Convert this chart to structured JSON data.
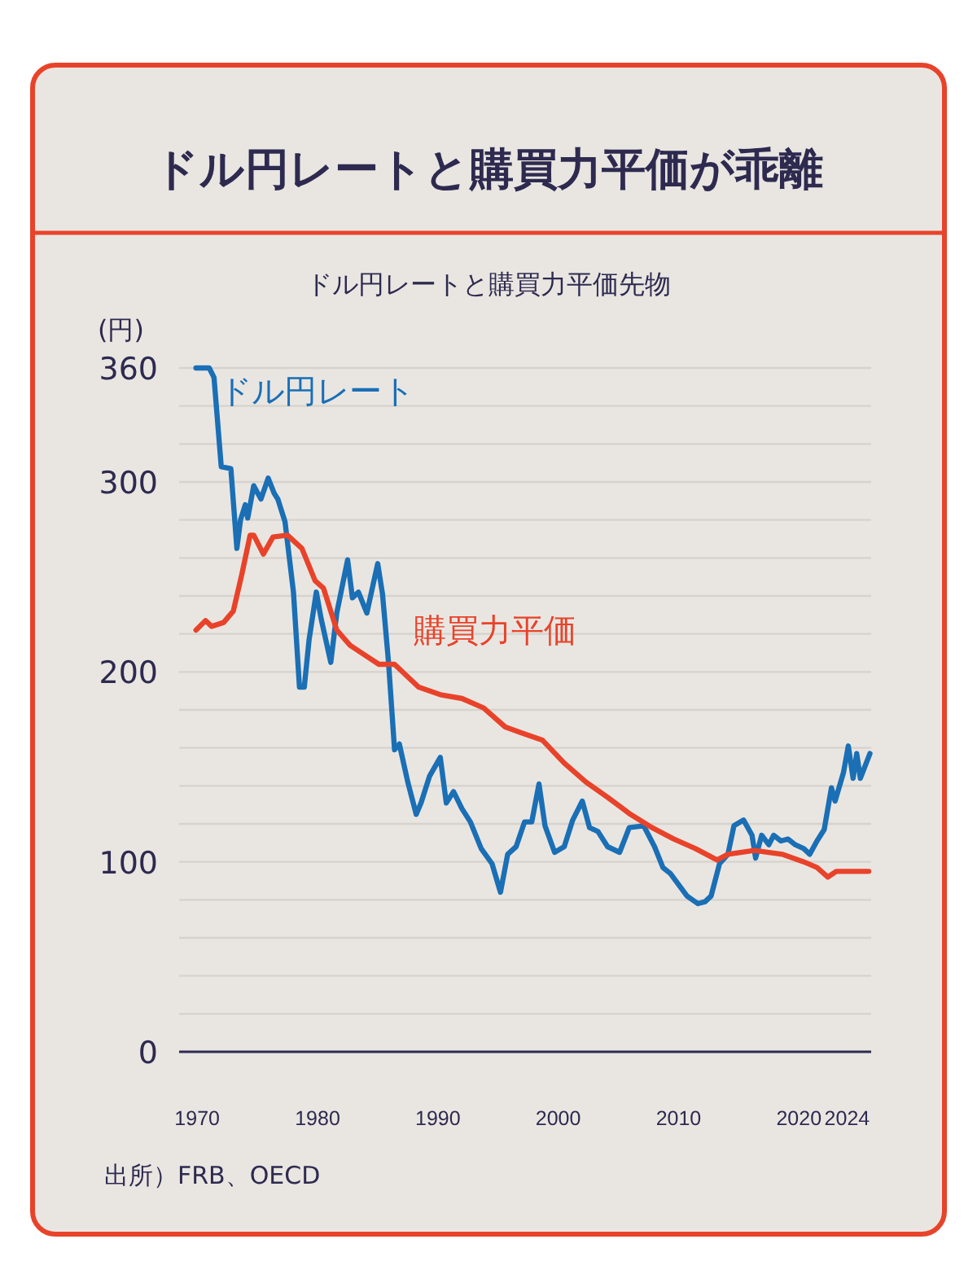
{
  "chart_data": {
    "type": "line",
    "title": "ドル円レートと購買力平価が乖離",
    "subtitle": "ドル円レートと購買力平価先物",
    "ylabel": "(円)",
    "annotations": [
      "出所）FRB、OECD"
    ],
    "xlim": [
      1968.5,
      2026
    ],
    "xticks": [
      1970,
      1980,
      1990,
      2000,
      2010,
      2020,
      2024
    ],
    "ylim": [
      0,
      360
    ],
    "yticks": [
      0,
      {
        "value": 20,
        "label": null
      },
      {
        "value": 40,
        "label": null
      },
      {
        "value": 60,
        "label": null
      },
      {
        "value": 80,
        "label": null
      },
      100,
      {
        "value": 120,
        "label": null
      },
      {
        "value": 140,
        "label": null
      },
      {
        "value": 160,
        "label": null
      },
      {
        "value": 180,
        "label": null
      },
      200,
      {
        "value": 220,
        "label": null
      },
      {
        "value": 240,
        "label": null
      },
      {
        "value": 260,
        "label": null
      },
      {
        "value": 280,
        "label": null
      },
      300,
      {
        "value": 320,
        "label": null
      },
      {
        "value": 340,
        "label": null
      },
      360
    ],
    "grid": "y",
    "legend": false,
    "line_style": "solid",
    "marker": "none",
    "series": [
      {
        "name": "ドル円レート",
        "color": "#1a6fb5",
        "x": [
          1969.9,
          1971.0,
          1971.4,
          1972.0,
          1972.8,
          1973.3,
          1973.6,
          1974.0,
          1974.2,
          1974.7,
          1975.3,
          1975.9,
          1976.4,
          1976.7,
          1977.3,
          1978.0,
          1978.5,
          1978.9,
          1979.3,
          1979.9,
          1980.3,
          1981.1,
          1981.6,
          1982.5,
          1982.9,
          1983.4,
          1984.1,
          1985.0,
          1985.4,
          1985.9,
          1986.4,
          1986.8,
          1987.5,
          1988.2,
          1988.6,
          1989.3,
          1990.2,
          1990.7,
          1991.3,
          1992.0,
          1992.7,
          1993.6,
          1994.5,
          1995.2,
          1995.8,
          1996.5,
          1997.2,
          1997.8,
          1998.4,
          1998.9,
          1999.7,
          2000.5,
          2001.2,
          2002.0,
          2002.6,
          2003.3,
          2004.1,
          2005.1,
          2005.9,
          2007.1,
          2008.0,
          2008.7,
          2009.3,
          2010.0,
          2010.7,
          2011.6,
          2012.2,
          2012.7,
          2013.4,
          2014.1,
          2014.6,
          2015.4,
          2016.1,
          2016.4,
          2016.9,
          2017.5,
          2017.9,
          2018.5,
          2019.1,
          2019.7,
          2020.4,
          2020.9,
          2021.5,
          2022.1,
          2022.7,
          2023.0,
          2023.7,
          2024.1,
          2024.5,
          2024.8,
          2025.1,
          2025.9
        ],
        "values": [
          360,
          360,
          355,
          308,
          307,
          265,
          280,
          288,
          281,
          298,
          291,
          302,
          294,
          291,
          279,
          242,
          192,
          192,
          217,
          242,
          228,
          205,
          231,
          259,
          239,
          242,
          231,
          257,
          241,
          205,
          159,
          162,
          142,
          125,
          131,
          145,
          155,
          131,
          137,
          128,
          121,
          107,
          99,
          84,
          104,
          108,
          121,
          121,
          141,
          119,
          105,
          108,
          122,
          132,
          118,
          116,
          108,
          105,
          118,
          119,
          108,
          97,
          94,
          88,
          82,
          78,
          79,
          82,
          99,
          104,
          119,
          122,
          114,
          102,
          114,
          109,
          114,
          111,
          112,
          109,
          107,
          104,
          111,
          117,
          139,
          132,
          147,
          161,
          144,
          157,
          144,
          157
        ]
      },
      {
        "name": "購買力平価",
        "color": "#e8432a",
        "x": [
          1969.9,
          1970.7,
          1971.2,
          1972.2,
          1973.0,
          1973.7,
          1974.4,
          1974.7,
          1975.5,
          1976.3,
          1977.5,
          1978.7,
          1979.8,
          1980.5,
          1981.6,
          1982.7,
          1983.9,
          1985.1,
          1986.4,
          1988.4,
          1990.2,
          1992.0,
          1993.8,
          1995.6,
          1996.9,
          1998.7,
          2000.5,
          2002.3,
          2004.1,
          2006.0,
          2007.8,
          2009.6,
          2011.4,
          2013.2,
          2014.1,
          2016.3,
          2018.6,
          2020.4,
          2021.5,
          2022.4,
          2023.1,
          2025.8
        ],
        "values": [
          222,
          227,
          224,
          226,
          232,
          251,
          272,
          272,
          262,
          271,
          272,
          265,
          248,
          244,
          222,
          214,
          209,
          204,
          204,
          192,
          188,
          186,
          181,
          171,
          168,
          164,
          152,
          142,
          134,
          125,
          118,
          112,
          107,
          101,
          104,
          106,
          104,
          100,
          97,
          92,
          95,
          95
        ]
      }
    ]
  }
}
